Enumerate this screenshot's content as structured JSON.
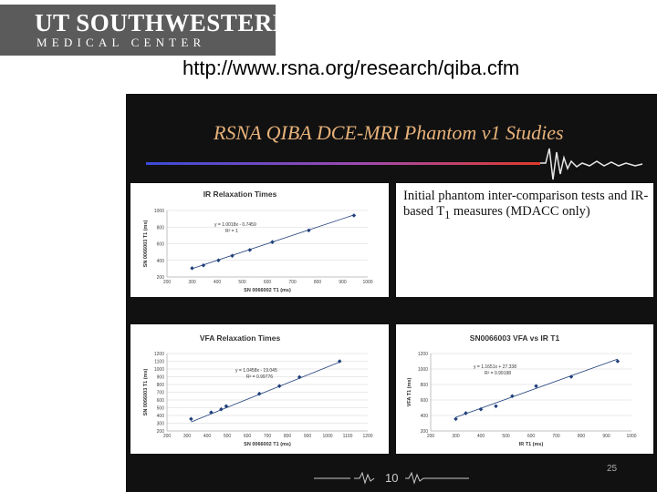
{
  "logo": {
    "line1": "UT SOUTHWESTERN",
    "line2": "MEDICAL CENTER"
  },
  "url": "http://www.rsna.org/research/qiba.cfm",
  "slide": {
    "title": "RSNA QIBA DCE-MRI Phantom v1 Studies",
    "description_html": "Initial phantom inter-comparison tests and IR-based T<sub>1</sub> measures (MDACC only)",
    "slide_number": "25",
    "footer_number": "10"
  },
  "colors": {
    "title": "#e8b27a",
    "band_start": "#3a4bd6",
    "band_end": "#e23a2a",
    "marker": "#1f3f7a",
    "background": "#111111"
  },
  "chart_data": [
    {
      "type": "scatter",
      "title": "IR Relaxation Times",
      "xlabel": "SN 0066002 T1 (ms)",
      "ylabel": "SN 0066003 T1 (ms)",
      "xlim": [
        200,
        1000
      ],
      "ylim": [
        200,
        1000
      ],
      "xticks": [
        200,
        300,
        400,
        500,
        600,
        700,
        800,
        900,
        1000
      ],
      "yticks": [
        200,
        400,
        600,
        800,
        1000
      ],
      "equation": "y = 1.0018x - 0.7459",
      "r2": "R² = 1",
      "points": [
        [
          300,
          305
        ],
        [
          345,
          340
        ],
        [
          405,
          400
        ],
        [
          460,
          455
        ],
        [
          530,
          525
        ],
        [
          620,
          620
        ],
        [
          765,
          760
        ],
        [
          945,
          940
        ]
      ],
      "trendline": [
        [
          300,
          300
        ],
        [
          945,
          946
        ]
      ]
    },
    {
      "type": "scatter",
      "title": "VFA Relaxation Times",
      "xlabel": "SN 0066002 T1 (ms)",
      "ylabel": "SN 0066003 T1 (ms)",
      "xlim": [
        200,
        1200
      ],
      "ylim": [
        200,
        1200
      ],
      "xticks": [
        200,
        300,
        400,
        500,
        600,
        700,
        800,
        900,
        1000,
        1100,
        1200
      ],
      "yticks": [
        200,
        300,
        400,
        500,
        600,
        700,
        800,
        900,
        1000,
        1100,
        1200
      ],
      "equation": "y = 1.0458x - 19.045",
      "r2": "R² = 0.99776",
      "points": [
        [
          320,
          355
        ],
        [
          420,
          440
        ],
        [
          470,
          480
        ],
        [
          495,
          520
        ],
        [
          660,
          680
        ],
        [
          760,
          780
        ],
        [
          860,
          895
        ],
        [
          1060,
          1100
        ]
      ],
      "trendline": [
        [
          320,
          316
        ],
        [
          1060,
          1090
        ]
      ]
    },
    {
      "type": "scatter",
      "title": "SN0066003 VFA vs IR T1",
      "xlabel": "IR T1 (ms)",
      "ylabel": "VFA T1 (ms)",
      "xlim": [
        200,
        1000
      ],
      "ylim": [
        200,
        1200
      ],
      "xticks": [
        200,
        300,
        400,
        500,
        600,
        700,
        800,
        900,
        1000
      ],
      "yticks": [
        200,
        400,
        600,
        800,
        1000,
        1200
      ],
      "equation": "y = 1.1651x + 27.338",
      "r2": "R² = 0.99198",
      "points": [
        [
          300,
          355
        ],
        [
          340,
          430
        ],
        [
          400,
          480
        ],
        [
          460,
          520
        ],
        [
          525,
          650
        ],
        [
          620,
          780
        ],
        [
          760,
          900
        ],
        [
          945,
          1100
        ]
      ],
      "trendline": [
        [
          300,
          377
        ],
        [
          945,
          1128
        ]
      ]
    }
  ]
}
